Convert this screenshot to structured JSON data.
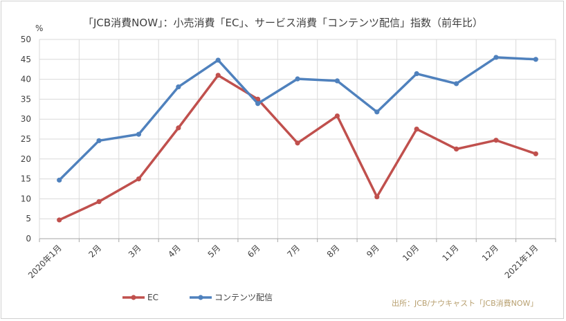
{
  "chart_data": {
    "type": "line",
    "title": "「JCB消費NOW」：小売消費「EC」、サービス消費「コンテンツ配信」指数（前年比）",
    "unit_label": "%",
    "categories": [
      "2020年1月",
      "2月",
      "3月",
      "4月",
      "5月",
      "6月",
      "7月",
      "8月",
      "9月",
      "10月",
      "11月",
      "12月",
      "2021年1月"
    ],
    "ylim": [
      0,
      50
    ],
    "yticks": [
      0,
      5,
      10,
      15,
      20,
      25,
      30,
      35,
      40,
      45,
      50
    ],
    "grid": true,
    "legend_position": "bottom-left",
    "series": [
      {
        "name": "EC",
        "color": "#c0504d",
        "values": [
          4.7,
          9.3,
          15.0,
          27.8,
          41.0,
          35.0,
          24.0,
          30.8,
          10.5,
          27.5,
          22.5,
          24.7,
          21.3
        ]
      },
      {
        "name": "コンテンツ配信",
        "color": "#4f81bd",
        "values": [
          14.7,
          24.6,
          26.2,
          38.1,
          44.8,
          33.9,
          40.1,
          39.6,
          31.8,
          41.4,
          38.9,
          45.5,
          45.0
        ]
      }
    ]
  },
  "source": "出所：JCB/ナウキャスト「JCB消費NOW」"
}
